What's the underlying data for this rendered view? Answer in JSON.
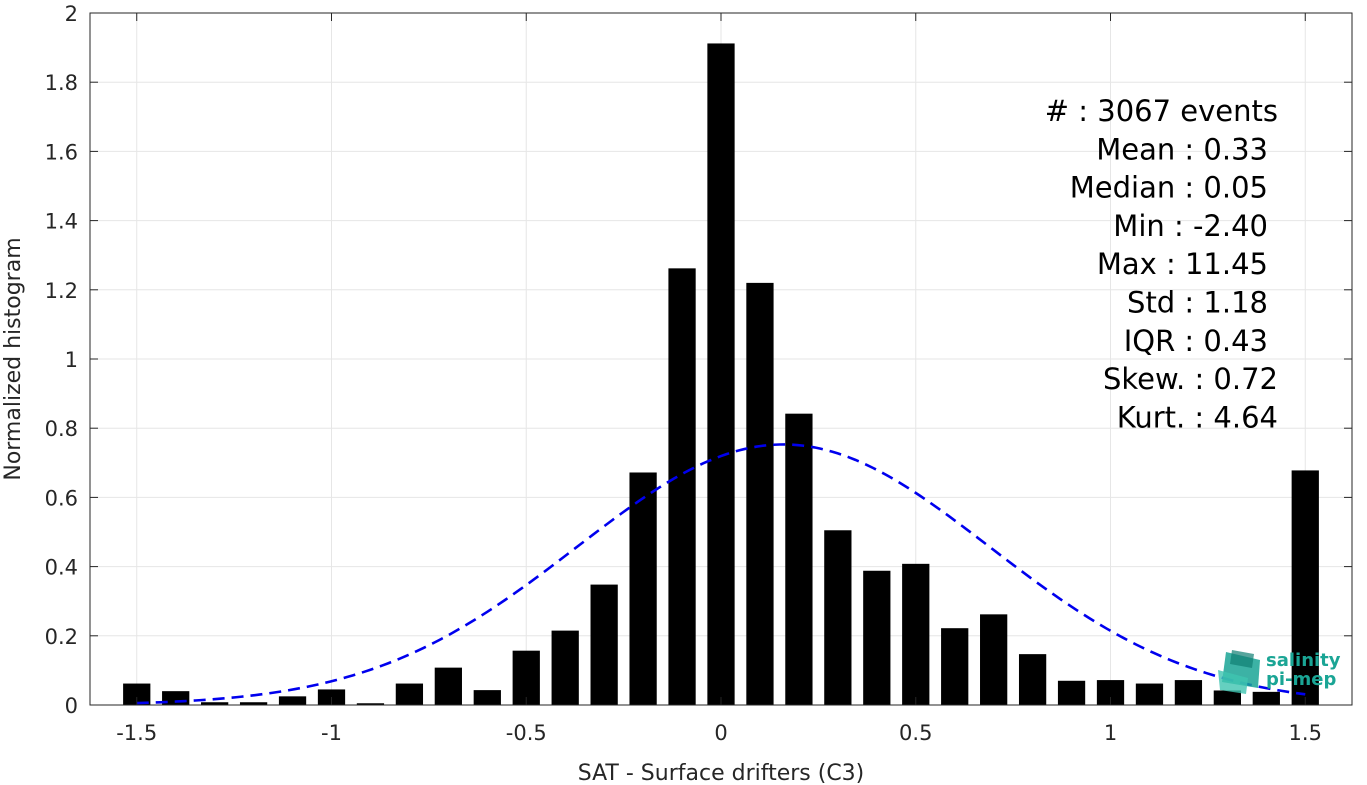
{
  "chart_data": {
    "type": "bar",
    "xlabel": "SAT - Surface drifters (C3)",
    "ylabel": "Normalized histogram",
    "xlim": [
      -1.62,
      1.62
    ],
    "ylim": [
      0,
      2
    ],
    "xticks": [
      -1.5,
      -1,
      -0.5,
      0,
      0.5,
      1,
      1.5
    ],
    "xtick_labels": [
      "-1.5",
      "-1",
      "-0.5",
      "0",
      "0.5",
      "1",
      "1.5"
    ],
    "yticks": [
      0,
      0.2,
      0.4,
      0.6,
      0.8,
      1,
      1.2,
      1.4,
      1.6,
      1.8,
      2
    ],
    "ytick_labels": [
      "0",
      "0.2",
      "0.4",
      "0.6",
      "0.8",
      "1",
      "1.2",
      "1.4",
      "1.6",
      "1.8",
      "2"
    ],
    "grid": true,
    "bar_color": "#000000",
    "bar_width": 0.07,
    "x": [
      -1.5,
      -1.4,
      -1.3,
      -1.2,
      -1.1,
      -1.0,
      -0.9,
      -0.8,
      -0.7,
      -0.6,
      -0.5,
      -0.4,
      -0.3,
      -0.2,
      -0.1,
      0.0,
      0.1,
      0.2,
      0.3,
      0.4,
      0.5,
      0.6,
      0.7,
      0.8,
      0.9,
      1.0,
      1.1,
      1.2,
      1.3,
      1.4,
      1.5
    ],
    "values": [
      0.062,
      0.04,
      0.008,
      0.008,
      0.025,
      0.045,
      0.005,
      0.062,
      0.108,
      0.043,
      0.157,
      0.215,
      0.348,
      0.672,
      1.262,
      1.912,
      1.22,
      0.842,
      0.505,
      0.388,
      0.408,
      0.222,
      0.262,
      0.147,
      0.07,
      0.072,
      0.062,
      0.072,
      0.042,
      0.038,
      0.678
    ],
    "fit_curve": {
      "style": "dashed",
      "color": "#0000ee",
      "mean": 0.16,
      "std": 0.53,
      "peak": 0.753,
      "x_range": [
        -1.5,
        1.5
      ]
    },
    "annotations": [
      "#  : 3067 events",
      "Mean : 0.33",
      "Median : 0.05",
      "Min : -2.40",
      "Max : 11.45",
      "Std : 1.18",
      "IQR : 0.43",
      "Skew. : 0.72",
      "Kurt. : 4.64"
    ]
  },
  "logo": {
    "line1": "salinity",
    "line2": "pi-mep",
    "color": "#1aa595"
  }
}
